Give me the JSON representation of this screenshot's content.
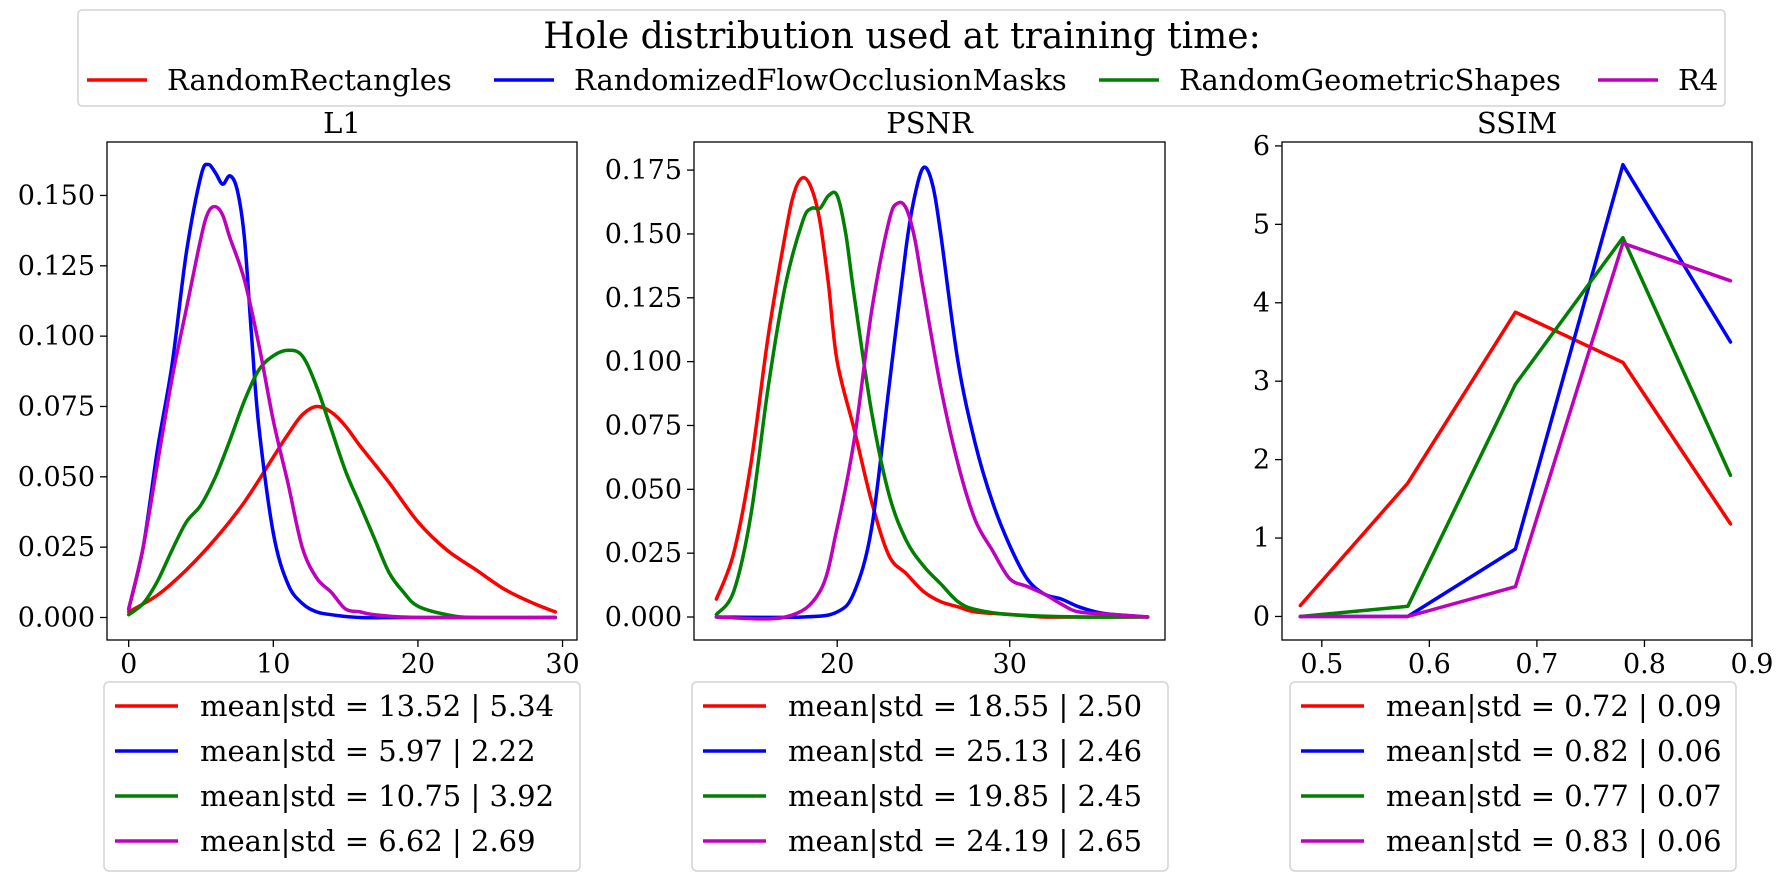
{
  "colors": {
    "red": "#ff0000",
    "blue": "#0000ff",
    "green": "#008000",
    "magenta": "#bf00bf"
  },
  "chart_data": {
    "legend": {
      "title": "Hole distribution used at training time:",
      "entries": [
        {
          "label": "RandomRectangles",
          "color": "#ff0000"
        },
        {
          "label": "RandomizedFlowOcclusionMasks",
          "color": "#0000ff"
        },
        {
          "label": "RandomGeometricShapes",
          "color": "#008000"
        },
        {
          "label": "R4",
          "color": "#bf00bf"
        }
      ]
    },
    "panels": [
      {
        "type": "line",
        "title": "L1",
        "xlim": [
          -1.5,
          31
        ],
        "ylim": [
          -0.008,
          0.169
        ],
        "xticks": [
          0,
          10,
          20,
          30
        ],
        "xtick_labels": [
          "0",
          "10",
          "20",
          "30"
        ],
        "yticks": [
          0,
          0.025,
          0.05,
          0.075,
          0.1,
          0.125,
          0.15
        ],
        "ytick_labels": [
          "0.000",
          "0.025",
          "0.050",
          "0.075",
          "0.100",
          "0.125",
          "0.150"
        ],
        "legend_entries": [
          "mean|std = 13.52 | 5.34",
          "mean|std = 5.97 | 2.22",
          "mean|std = 10.75 | 3.92",
          "mean|std = 6.62 | 2.69"
        ],
        "series": [
          {
            "name": "RandomRectangles",
            "color": "#ff0000",
            "x": [
              0,
              2,
              4,
              6,
              8,
              10,
              11,
              12,
              13,
              14,
              15,
              16,
              18,
              20,
              22,
              24,
              26,
              28,
              29.5
            ],
            "y": [
              0.002,
              0.008,
              0.017,
              0.028,
              0.041,
              0.057,
              0.065,
              0.072,
              0.075,
              0.073,
              0.068,
              0.061,
              0.048,
              0.034,
              0.024,
              0.017,
              0.01,
              0.005,
              0.002
            ]
          },
          {
            "name": "RandomizedFlowOcclusionMasks",
            "color": "#0000ff",
            "x": [
              0,
              1,
              2,
              3,
              4,
              5,
              5.5,
              6,
              6.5,
              7,
              7.5,
              8,
              8.5,
              9,
              10,
              11,
              12,
              13,
              14,
              16,
              20,
              29.5
            ],
            "y": [
              0.003,
              0.025,
              0.06,
              0.09,
              0.13,
              0.157,
              0.161,
              0.158,
              0.154,
              0.157,
              0.152,
              0.135,
              0.1,
              0.068,
              0.03,
              0.012,
              0.005,
              0.002,
              0.001,
              0,
              0,
              0
            ]
          },
          {
            "name": "RandomGeometricShapes",
            "color": "#008000",
            "x": [
              0,
              1,
              2,
              3,
              4,
              5,
              6,
              7,
              8,
              9,
              10,
              11,
              12,
              13,
              14,
              15,
              16,
              17,
              18,
              19,
              20,
              22,
              24,
              29.5
            ],
            "y": [
              0.001,
              0.005,
              0.013,
              0.024,
              0.034,
              0.04,
              0.05,
              0.063,
              0.077,
              0.088,
              0.093,
              0.095,
              0.093,
              0.082,
              0.067,
              0.052,
              0.04,
              0.028,
              0.016,
              0.009,
              0.004,
              0.001,
              0,
              0
            ]
          },
          {
            "name": "R4",
            "color": "#bf00bf",
            "x": [
              0,
              1,
              2,
              3,
              4,
              5,
              5.5,
              6,
              6.5,
              7,
              8,
              9,
              10,
              11,
              12,
              13,
              14,
              15,
              16,
              17,
              20,
              29.5
            ],
            "y": [
              0.003,
              0.025,
              0.055,
              0.085,
              0.11,
              0.135,
              0.144,
              0.146,
              0.143,
              0.135,
              0.12,
              0.097,
              0.07,
              0.048,
              0.025,
              0.014,
              0.009,
              0.003,
              0.002,
              0.001,
              0,
              0
            ]
          }
        ]
      },
      {
        "type": "line",
        "title": "PSNR",
        "xlim": [
          11.7,
          39
        ],
        "ylim": [
          -0.009,
          0.186
        ],
        "xticks": [
          20,
          30
        ],
        "xtick_labels": [
          "20",
          "30"
        ],
        "yticks": [
          0,
          0.025,
          0.05,
          0.075,
          0.1,
          0.125,
          0.15,
          0.175
        ],
        "ytick_labels": [
          "0.000",
          "0.025",
          "0.050",
          "0.075",
          "0.100",
          "0.125",
          "0.150",
          "0.175"
        ],
        "legend_entries": [
          "mean|std = 18.55 | 2.50",
          "mean|std = 25.13 | 2.46",
          "mean|std = 19.85 | 2.45",
          "mean|std = 24.19 | 2.65"
        ],
        "series": [
          {
            "name": "RandomRectangles",
            "color": "#ff0000",
            "x": [
              13,
              14,
              15,
              16,
              17,
              17.5,
              18,
              18.5,
              19,
              19.5,
              20,
              21,
              22,
              23,
              24,
              25,
              26,
              27,
              28,
              30,
              32,
              34,
              36,
              38
            ],
            "y": [
              0.007,
              0.025,
              0.06,
              0.11,
              0.15,
              0.166,
              0.172,
              0.168,
              0.155,
              0.13,
              0.1,
              0.073,
              0.045,
              0.024,
              0.017,
              0.01,
              0.006,
              0.004,
              0.002,
              0.001,
              0,
              0,
              0,
              0
            ]
          },
          {
            "name": "RandomizedFlowOcclusionMasks",
            "color": "#0000ff",
            "x": [
              13,
              18,
              20,
              21,
              22,
              23,
              24,
              24.5,
              25,
              25.5,
              26,
              27,
              28,
              29,
              30,
              31,
              32,
              33,
              34,
              35,
              36,
              38
            ],
            "y": [
              0,
              0,
              0.002,
              0.01,
              0.035,
              0.09,
              0.145,
              0.165,
              0.176,
              0.17,
              0.15,
              0.1,
              0.068,
              0.045,
              0.028,
              0.015,
              0.009,
              0.007,
              0.004,
              0.002,
              0.001,
              0
            ]
          },
          {
            "name": "RandomGeometricShapes",
            "color": "#008000",
            "x": [
              13,
              14,
              15,
              16,
              17,
              18,
              18.5,
              19,
              19.5,
              20,
              20.5,
              21,
              22,
              23,
              24,
              25,
              26,
              27,
              28,
              30,
              34,
              38
            ],
            "y": [
              0.001,
              0.01,
              0.04,
              0.09,
              0.13,
              0.155,
              0.16,
              0.16,
              0.165,
              0.165,
              0.15,
              0.125,
              0.08,
              0.048,
              0.03,
              0.02,
              0.013,
              0.006,
              0.003,
              0.001,
              0,
              0
            ]
          },
          {
            "name": "R4",
            "color": "#bf00bf",
            "x": [
              13,
              17,
              19,
              20,
              21,
              22,
              23,
              23.5,
              24,
              24.5,
              25,
              26,
              27,
              28,
              29,
              30,
              31,
              32,
              33,
              34,
              36,
              38
            ],
            "y": [
              0,
              0,
              0.01,
              0.035,
              0.07,
              0.12,
              0.155,
              0.162,
              0.16,
              0.148,
              0.128,
              0.09,
              0.06,
              0.038,
              0.026,
              0.015,
              0.012,
              0.009,
              0.005,
              0.002,
              0.001,
              0
            ]
          }
        ]
      },
      {
        "type": "line",
        "title": "SSIM",
        "xlim": [
          0.463,
          0.9
        ],
        "ylim": [
          -0.3,
          6.05
        ],
        "xticks": [
          0.5,
          0.6,
          0.7,
          0.8,
          0.9
        ],
        "xtick_labels": [
          "0.5",
          "0.6",
          "0.7",
          "0.8",
          "0.9"
        ],
        "yticks": [
          0,
          1,
          2,
          3,
          4,
          5,
          6
        ],
        "ytick_labels": [
          "0",
          "1",
          "2",
          "3",
          "4",
          "5",
          "6"
        ],
        "legend_entries": [
          "mean|std = 0.72 | 0.09",
          "mean|std = 0.82 | 0.06",
          "mean|std = 0.77 | 0.07",
          "mean|std = 0.83 | 0.06"
        ],
        "series": [
          {
            "name": "RandomRectangles",
            "color": "#ff0000",
            "x": [
              0.48,
              0.58,
              0.68,
              0.78,
              0.88
            ],
            "y": [
              0.14,
              1.7,
              3.88,
              3.24,
              1.18
            ]
          },
          {
            "name": "RandomizedFlowOcclusionMasks",
            "color": "#0000ff",
            "x": [
              0.48,
              0.58,
              0.68,
              0.78,
              0.88
            ],
            "y": [
              0,
              0,
              0.86,
              5.76,
              3.5
            ]
          },
          {
            "name": "RandomGeometricShapes",
            "color": "#008000",
            "x": [
              0.48,
              0.58,
              0.68,
              0.78,
              0.88
            ],
            "y": [
              0,
              0.13,
              2.96,
              4.83,
              1.8
            ]
          },
          {
            "name": "R4",
            "color": "#bf00bf",
            "x": [
              0.48,
              0.58,
              0.68,
              0.78,
              0.88
            ],
            "y": [
              0,
              0,
              0.38,
              4.76,
              4.28
            ]
          }
        ]
      }
    ]
  }
}
